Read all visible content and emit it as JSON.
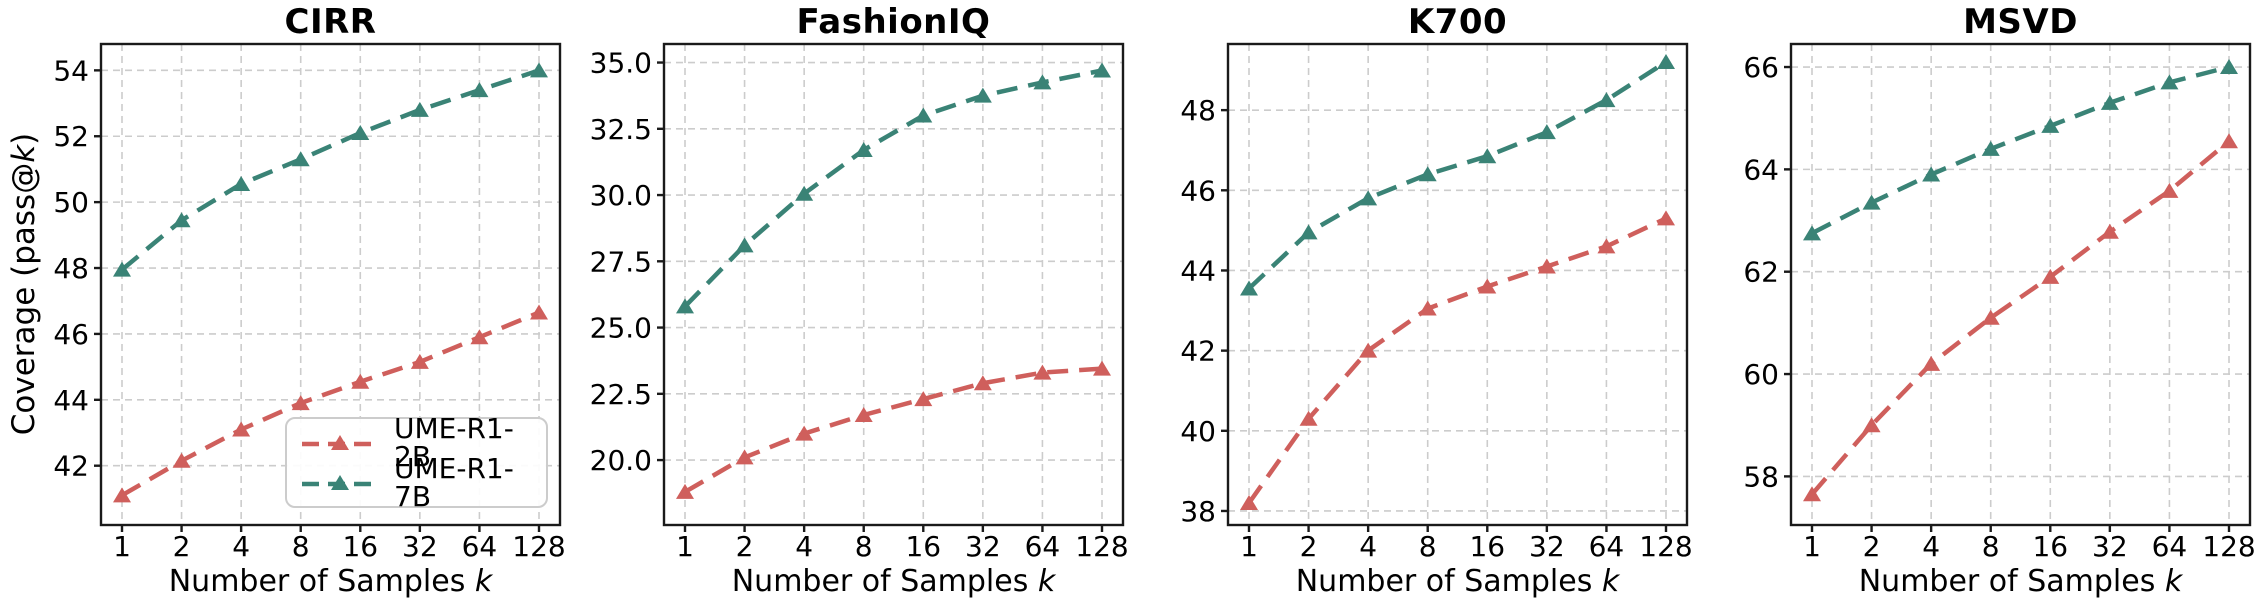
{
  "figure": {
    "ylabel": {
      "pre": "Coverage (pass@",
      "italic": "k",
      "post": ")"
    },
    "xlabel": {
      "pre": "Number of Samples ",
      "italic": "k"
    },
    "legend": [
      {
        "label": "UME-R1-2B",
        "color": "#cf5f5c"
      },
      {
        "label": "UME-R1-7B",
        "color": "#3a8376"
      }
    ],
    "colors": {
      "grid": "#cccccc",
      "spine": "#1a1a1a",
      "text": "#000000"
    }
  },
  "chart_data": [
    {
      "type": "line",
      "title": "CIRR",
      "xlabel": "Number of Samples k",
      "ylabel": "Coverage (pass@k)",
      "x_scale": "log2",
      "grid": true,
      "legend_position": "lower right",
      "x": [
        1,
        2,
        4,
        8,
        16,
        32,
        64,
        128
      ],
      "xticks": [
        "1",
        "2",
        "4",
        "8",
        "16",
        "32",
        "64",
        "128"
      ],
      "yticks": [
        "42",
        "44",
        "46",
        "48",
        "50",
        "52",
        "54"
      ],
      "ylim": [
        40.2,
        54.8
      ],
      "series": [
        {
          "name": "UME-R1-2B",
          "color": "#cf5f5c",
          "values": [
            41.1,
            42.15,
            43.1,
            43.9,
            44.55,
            45.15,
            45.9,
            46.65
          ]
        },
        {
          "name": "UME-R1-7B",
          "color": "#3a8376",
          "values": [
            47.95,
            49.45,
            50.55,
            51.3,
            52.1,
            52.8,
            53.4,
            54.0
          ]
        }
      ]
    },
    {
      "type": "line",
      "title": "FashionIQ",
      "xlabel": "Number of Samples k",
      "x_scale": "log2",
      "grid": true,
      "x": [
        1,
        2,
        4,
        8,
        16,
        32,
        64,
        128
      ],
      "xticks": [
        "1",
        "2",
        "4",
        "8",
        "16",
        "32",
        "64",
        "128"
      ],
      "yticks": [
        "20.0",
        "22.5",
        "25.0",
        "27.5",
        "30.0",
        "32.5",
        "35.0"
      ],
      "ylim": [
        17.55,
        35.7
      ],
      "series": [
        {
          "name": "UME-R1-2B",
          "color": "#cf5f5c",
          "values": [
            18.8,
            20.1,
            21.0,
            21.7,
            22.3,
            22.9,
            23.3,
            23.45
          ]
        },
        {
          "name": "UME-R1-7B",
          "color": "#3a8376",
          "values": [
            25.8,
            28.1,
            30.05,
            31.7,
            33.0,
            33.75,
            34.25,
            34.7
          ]
        }
      ]
    },
    {
      "type": "line",
      "title": "K700",
      "xlabel": "Number of Samples k",
      "x_scale": "log2",
      "grid": true,
      "x": [
        1,
        2,
        4,
        8,
        16,
        32,
        64,
        128
      ],
      "xticks": [
        "1",
        "2",
        "4",
        "8",
        "16",
        "32",
        "64",
        "128"
      ],
      "yticks": [
        "38",
        "40",
        "42",
        "44",
        "46",
        "48"
      ],
      "ylim": [
        37.65,
        49.65
      ],
      "series": [
        {
          "name": "UME-R1-2B",
          "color": "#cf5f5c",
          "values": [
            38.2,
            40.3,
            42.0,
            43.05,
            43.6,
            44.1,
            44.6,
            45.3
          ]
        },
        {
          "name": "UME-R1-7B",
          "color": "#3a8376",
          "values": [
            43.55,
            44.95,
            45.8,
            46.4,
            46.85,
            47.45,
            48.25,
            49.2
          ]
        }
      ]
    },
    {
      "type": "line",
      "title": "MSVD",
      "xlabel": "Number of Samples k",
      "x_scale": "log2",
      "grid": true,
      "x": [
        1,
        2,
        4,
        8,
        16,
        32,
        64,
        128
      ],
      "xticks": [
        "1",
        "2",
        "4",
        "8",
        "16",
        "32",
        "64",
        "128"
      ],
      "yticks": [
        "58",
        "60",
        "62",
        "64",
        "66"
      ],
      "ylim": [
        57.05,
        66.45
      ],
      "series": [
        {
          "name": "UME-R1-2B",
          "color": "#cf5f5c",
          "values": [
            57.65,
            59.0,
            60.2,
            61.1,
            61.9,
            62.78,
            63.58,
            64.55
          ]
        },
        {
          "name": "UME-R1-7B",
          "color": "#3a8376",
          "values": [
            62.75,
            63.35,
            63.9,
            64.4,
            64.85,
            65.3,
            65.7,
            66.0
          ]
        }
      ]
    }
  ]
}
